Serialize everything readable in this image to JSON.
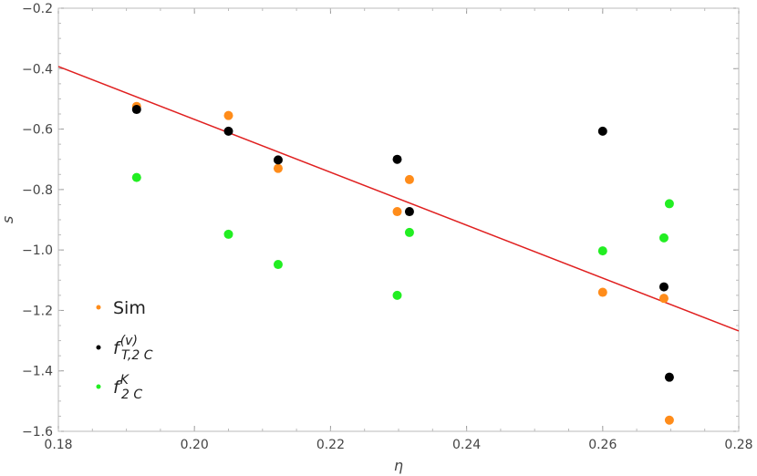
{
  "chart_data": {
    "type": "scatter",
    "xlabel": "η",
    "ylabel": "s",
    "xlim": [
      0.18,
      0.28
    ],
    "ylim": [
      -1.6,
      -0.2
    ],
    "x_ticks": [
      0.18,
      0.2,
      0.22,
      0.24,
      0.26,
      0.28
    ],
    "x_tick_labels": [
      "0.18",
      "0.20",
      "0.22",
      "0.24",
      "0.26",
      "0.28"
    ],
    "y_ticks": [
      -1.6,
      -1.4,
      -1.2,
      -1.0,
      -0.8,
      -0.6,
      -0.4,
      -0.2
    ],
    "y_tick_labels": [
      "−1.6",
      "−1.4",
      "−1.2",
      "−1.0",
      "−0.8",
      "−0.6",
      "−0.4",
      "−0.2"
    ],
    "grid": false,
    "legend_position": "bottom-left",
    "series": [
      {
        "name": "Sim",
        "color": "#ff8c1a",
        "points": [
          [
            0.1915,
            -0.525
          ],
          [
            0.205,
            -0.555
          ],
          [
            0.2123,
            -0.73
          ],
          [
            0.2298,
            -0.873
          ],
          [
            0.2316,
            -0.767
          ],
          [
            0.26,
            -1.14
          ],
          [
            0.269,
            -1.16
          ],
          [
            0.2698,
            -1.563
          ]
        ]
      },
      {
        "name": "f",
        "name_sup": "(v)",
        "name_sub": "T,2 C",
        "color": "#000000",
        "points": [
          [
            0.1915,
            -0.535
          ],
          [
            0.205,
            -0.607
          ],
          [
            0.2123,
            -0.702
          ],
          [
            0.2298,
            -0.7
          ],
          [
            0.2316,
            -0.873
          ],
          [
            0.26,
            -0.607
          ],
          [
            0.269,
            -1.122
          ],
          [
            0.2698,
            -1.421
          ]
        ]
      },
      {
        "name": "f",
        "name_sup": "K",
        "name_sub": "2 C",
        "color": "#22ee22",
        "points": [
          [
            0.1915,
            -0.76
          ],
          [
            0.205,
            -0.948
          ],
          [
            0.2123,
            -1.048
          ],
          [
            0.2298,
            -1.15
          ],
          [
            0.2316,
            -0.942
          ],
          [
            0.26,
            -1.003
          ],
          [
            0.269,
            -0.96
          ],
          [
            0.2698,
            -0.847
          ]
        ]
      }
    ],
    "fit_line": {
      "color": "#e02020",
      "points": [
        [
          0.18,
          -0.393
        ],
        [
          0.28,
          -1.268
        ]
      ]
    }
  }
}
